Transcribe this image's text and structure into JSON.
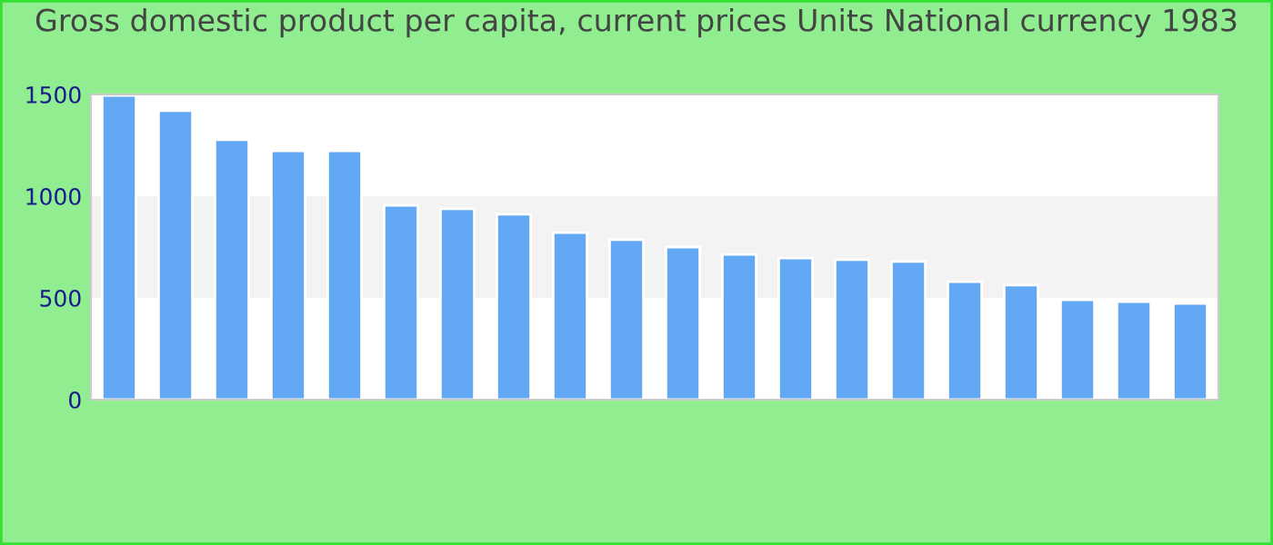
{
  "chart_data": {
    "type": "bar",
    "title": "Gross domestic product per capita, current prices Units National currency 1983",
    "categories": [
      null,
      null,
      null,
      null,
      null,
      null,
      null,
      null,
      null,
      null,
      null,
      null,
      null,
      null,
      null,
      null,
      null,
      null,
      null,
      null
    ],
    "values": [
      1495,
      1420,
      1277,
      1223,
      1223,
      955,
      938,
      911,
      821,
      786,
      750,
      714,
      696,
      688,
      679,
      580,
      563,
      491,
      482,
      473
    ],
    "color": "#62a8f5",
    "ylim": [
      0,
      1500
    ],
    "yticks": [
      0,
      500,
      1000,
      1500
    ],
    "bands": [
      {
        "axis": "y",
        "from": 500,
        "to": 1000,
        "color": "#f3f3f3"
      }
    ],
    "grid": false,
    "legend": false
  }
}
